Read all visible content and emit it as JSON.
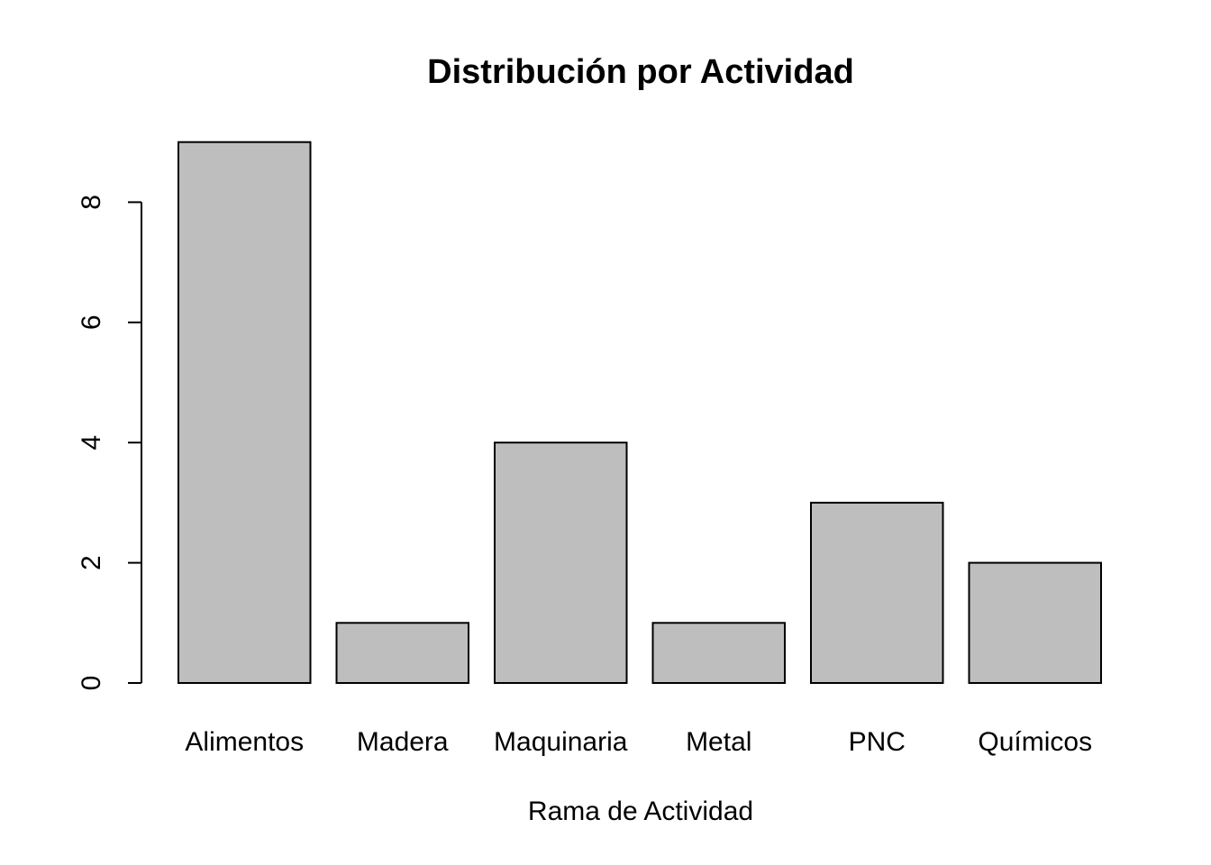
{
  "chart_data": {
    "type": "bar",
    "title": "Distribución por Actividad",
    "xlabel": "Rama de Actividad",
    "ylabel": "",
    "categories": [
      "Alimentos",
      "Madera",
      "Maquinaria",
      "Metal",
      "PNC",
      "Químicos"
    ],
    "values": [
      9,
      1,
      4,
      1,
      3,
      2
    ],
    "ylim": [
      0,
      9
    ],
    "yticks": [
      0,
      2,
      4,
      6,
      8
    ],
    "grid": false,
    "legend": "none",
    "colors": {
      "bar_fill": "#bebebe",
      "bar_border": "#000000",
      "axis": "#000000",
      "background": "#ffffff"
    }
  }
}
